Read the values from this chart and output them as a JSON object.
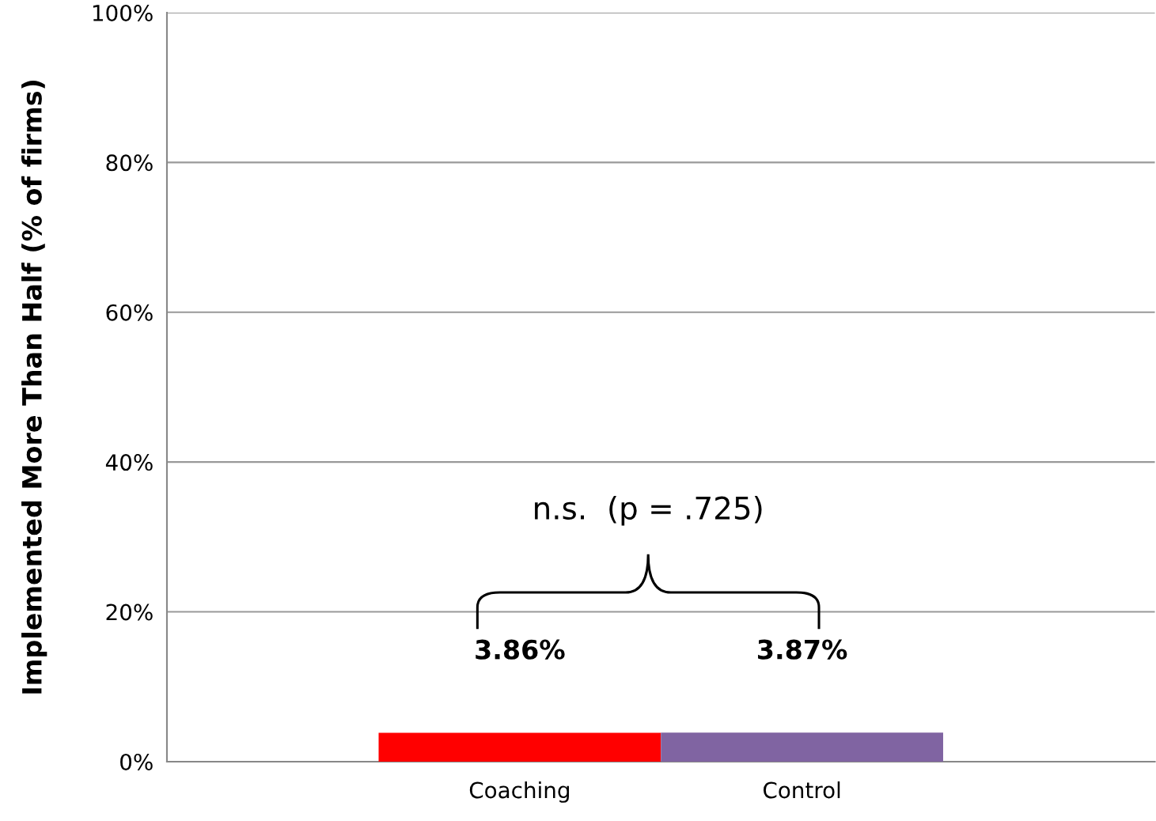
{
  "chart_data": {
    "type": "bar",
    "ylabel": "Implemented More Than Half (% of firms)",
    "categories": [
      "Coaching",
      "Control"
    ],
    "values": [
      3.86,
      3.87
    ],
    "colors": [
      "#ff0000",
      "#8064a2"
    ],
    "value_labels": [
      "3.86%",
      "3.87%"
    ],
    "ylim": [
      0,
      100
    ],
    "yticks": [
      {
        "value": 0,
        "label": "0%"
      },
      {
        "value": 20,
        "label": "20%"
      },
      {
        "value": 40,
        "label": "40%"
      },
      {
        "value": 60,
        "label": "60%"
      },
      {
        "value": 80,
        "label": "80%"
      },
      {
        "value": 100,
        "label": "100%"
      }
    ],
    "grid": "y",
    "annotations": [
      "n.s.  (p = .725)"
    ]
  }
}
